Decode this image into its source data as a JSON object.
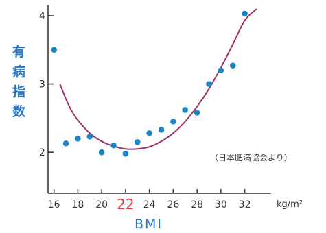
{
  "chart_data": {
    "type": "scatter",
    "ylabel_chars": [
      "有",
      "病",
      "指",
      "数"
    ],
    "xlabel": "BMI",
    "x_unit": "kg/m²",
    "source_note": "（日本肥満協会より）",
    "x_ticks": [
      "16",
      "18",
      "20",
      "22",
      "24",
      "26",
      "28",
      "30",
      "32"
    ],
    "x_tick_values": [
      16,
      18,
      20,
      22,
      24,
      26,
      28,
      30,
      32
    ],
    "highlight_x_tick": "22",
    "y_ticks": [
      "2",
      "3",
      "4"
    ],
    "y_tick_values": [
      2,
      3,
      4
    ],
    "xlim": [
      15.5,
      34.5
    ],
    "ylim": [
      1.4,
      4.15
    ],
    "grid": false,
    "colors": {
      "points": "#1a86c8",
      "curve": "#a0306a",
      "highlight": "#e0383a",
      "axis": "#333333",
      "label": "#2a76c2"
    },
    "series": [
      {
        "type": "scatter",
        "x": [
          16,
          17,
          18,
          19,
          20,
          21,
          22,
          23,
          24,
          25,
          26,
          27,
          28,
          29,
          30,
          31,
          32
        ],
        "y": [
          3.5,
          2.13,
          2.2,
          2.23,
          2.0,
          2.1,
          1.98,
          2.15,
          2.28,
          2.33,
          2.45,
          2.62,
          2.58,
          3.0,
          3.2,
          3.27,
          4.03
        ]
      },
      {
        "type": "line",
        "x": [
          16.5,
          17,
          17.5,
          18,
          19,
          20,
          21,
          22,
          23,
          24,
          25,
          26,
          27,
          28,
          29,
          30,
          31,
          32,
          33
        ],
        "y": [
          3.0,
          2.78,
          2.6,
          2.47,
          2.28,
          2.16,
          2.09,
          2.05,
          2.05,
          2.08,
          2.16,
          2.28,
          2.45,
          2.67,
          2.93,
          3.24,
          3.58,
          3.93,
          4.1
        ]
      }
    ]
  }
}
